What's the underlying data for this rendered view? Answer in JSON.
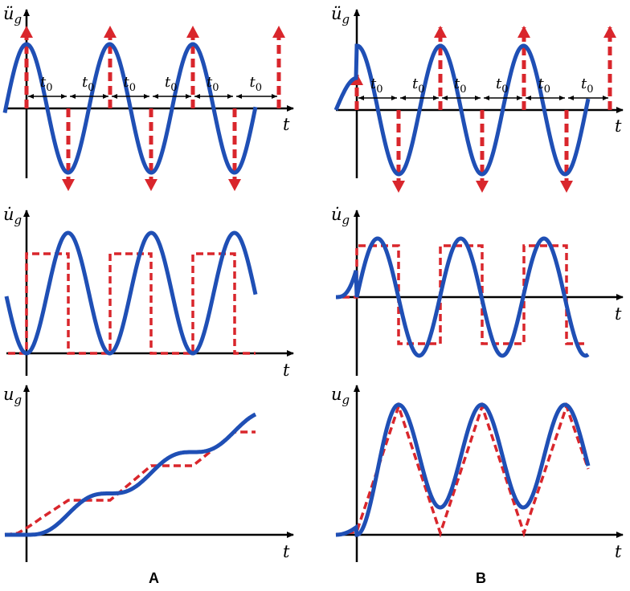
{
  "colors": {
    "blue": "#1f4fb5",
    "red": "#d9262c",
    "axis": "#000000"
  },
  "panels": {
    "a_label": "A",
    "b_label": "B"
  },
  "axes": {
    "t": "t",
    "accel_main": "ü",
    "vel_main": "u̇",
    "disp_main": "u",
    "sub": "g"
  },
  "spacing": {
    "main": "t",
    "sub": "0"
  },
  "legend": {
    "items": [
      {
        "kind": "blue-solid",
        "meaning": "smooth sine-based profile"
      },
      {
        "kind": "red-dashed",
        "meaning": "impulse / pulse approximation"
      }
    ]
  }
}
